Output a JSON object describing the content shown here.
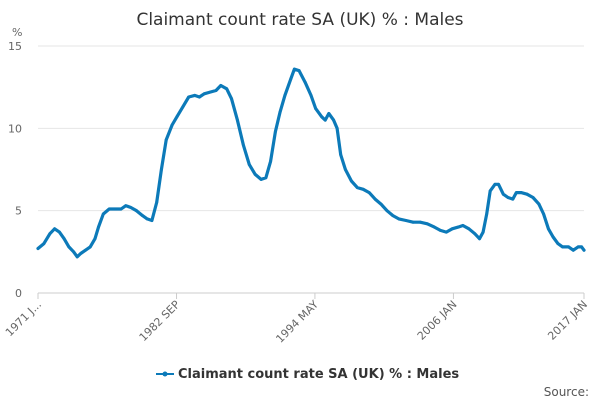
{
  "chart_data": {
    "type": "line",
    "title": "Claimant count rate SA (UK) % : Males",
    "unit_label": "%",
    "ylim": [
      0,
      15
    ],
    "y_ticks": [
      0,
      5,
      10,
      15
    ],
    "x_tick_labels": [
      "1971 J...",
      "1982 SEP",
      "1994 MAY",
      "2006 JAN",
      "2017 JAN"
    ],
    "x_tick_positions": [
      1971.0,
      1982.67,
      1994.33,
      2006.0,
      2017.0
    ],
    "xlim": [
      1971.0,
      2017.0
    ],
    "grid": true,
    "legend_position": "bottom",
    "series": [
      {
        "name": "Claimant count rate SA (UK) % : Males",
        "color": "#0c7ab9",
        "points": [
          [
            1971.0,
            2.7
          ],
          [
            1971.5,
            3.0
          ],
          [
            1972.0,
            3.6
          ],
          [
            1972.4,
            3.9
          ],
          [
            1972.8,
            3.7
          ],
          [
            1973.2,
            3.3
          ],
          [
            1973.6,
            2.8
          ],
          [
            1974.0,
            2.5
          ],
          [
            1974.3,
            2.2
          ],
          [
            1974.6,
            2.4
          ],
          [
            1975.0,
            2.6
          ],
          [
            1975.4,
            2.8
          ],
          [
            1975.8,
            3.3
          ],
          [
            1976.1,
            4.0
          ],
          [
            1976.5,
            4.8
          ],
          [
            1977.0,
            5.1
          ],
          [
            1977.5,
            5.1
          ],
          [
            1978.0,
            5.1
          ],
          [
            1978.4,
            5.3
          ],
          [
            1978.8,
            5.2
          ],
          [
            1979.3,
            5.0
          ],
          [
            1979.8,
            4.7
          ],
          [
            1980.2,
            4.5
          ],
          [
            1980.6,
            4.4
          ],
          [
            1981.0,
            5.5
          ],
          [
            1981.4,
            7.5
          ],
          [
            1981.8,
            9.3
          ],
          [
            1982.3,
            10.2
          ],
          [
            1982.7,
            10.7
          ],
          [
            1983.2,
            11.3
          ],
          [
            1983.7,
            11.9
          ],
          [
            1984.2,
            12.0
          ],
          [
            1984.6,
            11.9
          ],
          [
            1985.0,
            12.1
          ],
          [
            1985.5,
            12.2
          ],
          [
            1986.0,
            12.3
          ],
          [
            1986.4,
            12.6
          ],
          [
            1986.9,
            12.4
          ],
          [
            1987.3,
            11.8
          ],
          [
            1987.8,
            10.5
          ],
          [
            1988.3,
            9.0
          ],
          [
            1988.8,
            7.8
          ],
          [
            1989.3,
            7.2
          ],
          [
            1989.8,
            6.9
          ],
          [
            1990.2,
            7.0
          ],
          [
            1990.6,
            8.0
          ],
          [
            1991.0,
            9.8
          ],
          [
            1991.4,
            11.0
          ],
          [
            1991.8,
            12.0
          ],
          [
            1992.3,
            13.0
          ],
          [
            1992.6,
            13.6
          ],
          [
            1993.0,
            13.5
          ],
          [
            1993.5,
            12.8
          ],
          [
            1994.0,
            12.0
          ],
          [
            1994.4,
            11.2
          ],
          [
            1994.9,
            10.7
          ],
          [
            1995.2,
            10.5
          ],
          [
            1995.5,
            10.9
          ],
          [
            1995.9,
            10.5
          ],
          [
            1996.2,
            10.0
          ],
          [
            1996.5,
            8.4
          ],
          [
            1996.9,
            7.5
          ],
          [
            1997.4,
            6.8
          ],
          [
            1997.9,
            6.4
          ],
          [
            1998.4,
            6.3
          ],
          [
            1998.9,
            6.1
          ],
          [
            1999.4,
            5.7
          ],
          [
            1999.9,
            5.4
          ],
          [
            2000.4,
            5.0
          ],
          [
            2000.9,
            4.7
          ],
          [
            2001.4,
            4.5
          ],
          [
            2002.0,
            4.4
          ],
          [
            2002.6,
            4.3
          ],
          [
            2003.2,
            4.3
          ],
          [
            2003.8,
            4.2
          ],
          [
            2004.4,
            4.0
          ],
          [
            2004.9,
            3.8
          ],
          [
            2005.4,
            3.7
          ],
          [
            2005.9,
            3.9
          ],
          [
            2006.4,
            4.0
          ],
          [
            2006.8,
            4.1
          ],
          [
            2007.3,
            3.9
          ],
          [
            2007.8,
            3.6
          ],
          [
            2008.2,
            3.3
          ],
          [
            2008.5,
            3.7
          ],
          [
            2008.8,
            4.8
          ],
          [
            2009.1,
            6.2
          ],
          [
            2009.5,
            6.6
          ],
          [
            2009.8,
            6.6
          ],
          [
            2010.2,
            6.0
          ],
          [
            2010.6,
            5.8
          ],
          [
            2011.0,
            5.7
          ],
          [
            2011.3,
            6.1
          ],
          [
            2011.7,
            6.1
          ],
          [
            2012.2,
            6.0
          ],
          [
            2012.7,
            5.8
          ],
          [
            2013.2,
            5.4
          ],
          [
            2013.6,
            4.8
          ],
          [
            2014.0,
            3.9
          ],
          [
            2014.4,
            3.4
          ],
          [
            2014.8,
            3.0
          ],
          [
            2015.2,
            2.8
          ],
          [
            2015.7,
            2.8
          ],
          [
            2016.1,
            2.6
          ],
          [
            2016.5,
            2.8
          ],
          [
            2016.8,
            2.8
          ],
          [
            2017.0,
            2.6
          ]
        ]
      }
    ],
    "source_label": "Source:"
  }
}
